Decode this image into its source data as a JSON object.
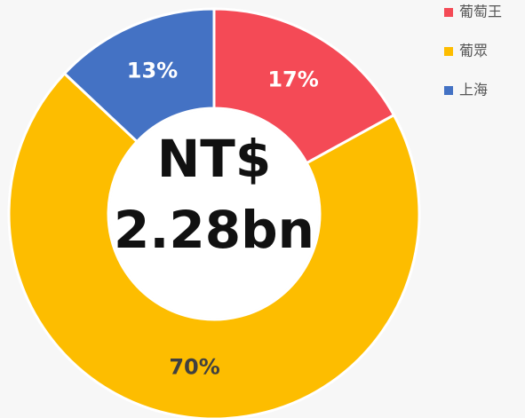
{
  "chart_data": {
    "type": "donut",
    "categories": [
      "葡萄王",
      "葡眾",
      "上海"
    ],
    "values": [
      17,
      70,
      13
    ],
    "value_labels": [
      "17%",
      "70%",
      "13%"
    ],
    "colors": [
      "#f44a56",
      "#fdbd00",
      "#4472c4"
    ],
    "center_text": [
      "NT$",
      "2.28bn"
    ],
    "legend": "top-right"
  }
}
